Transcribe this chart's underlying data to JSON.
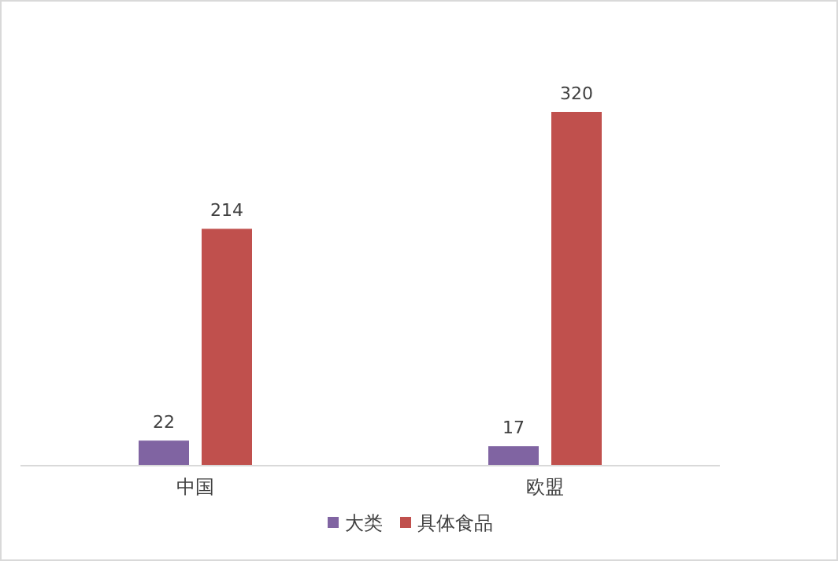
{
  "chart_data": {
    "type": "bar",
    "categories": [
      "中国",
      "欧盟"
    ],
    "series": [
      {
        "name": "大类",
        "color": "#8064a2",
        "values": [
          22,
          17
        ]
      },
      {
        "name": "具体食品",
        "color": "#c0504d",
        "values": [
          214,
          320
        ]
      }
    ],
    "data_labels": true,
    "legend": "bottom",
    "grid": false
  }
}
